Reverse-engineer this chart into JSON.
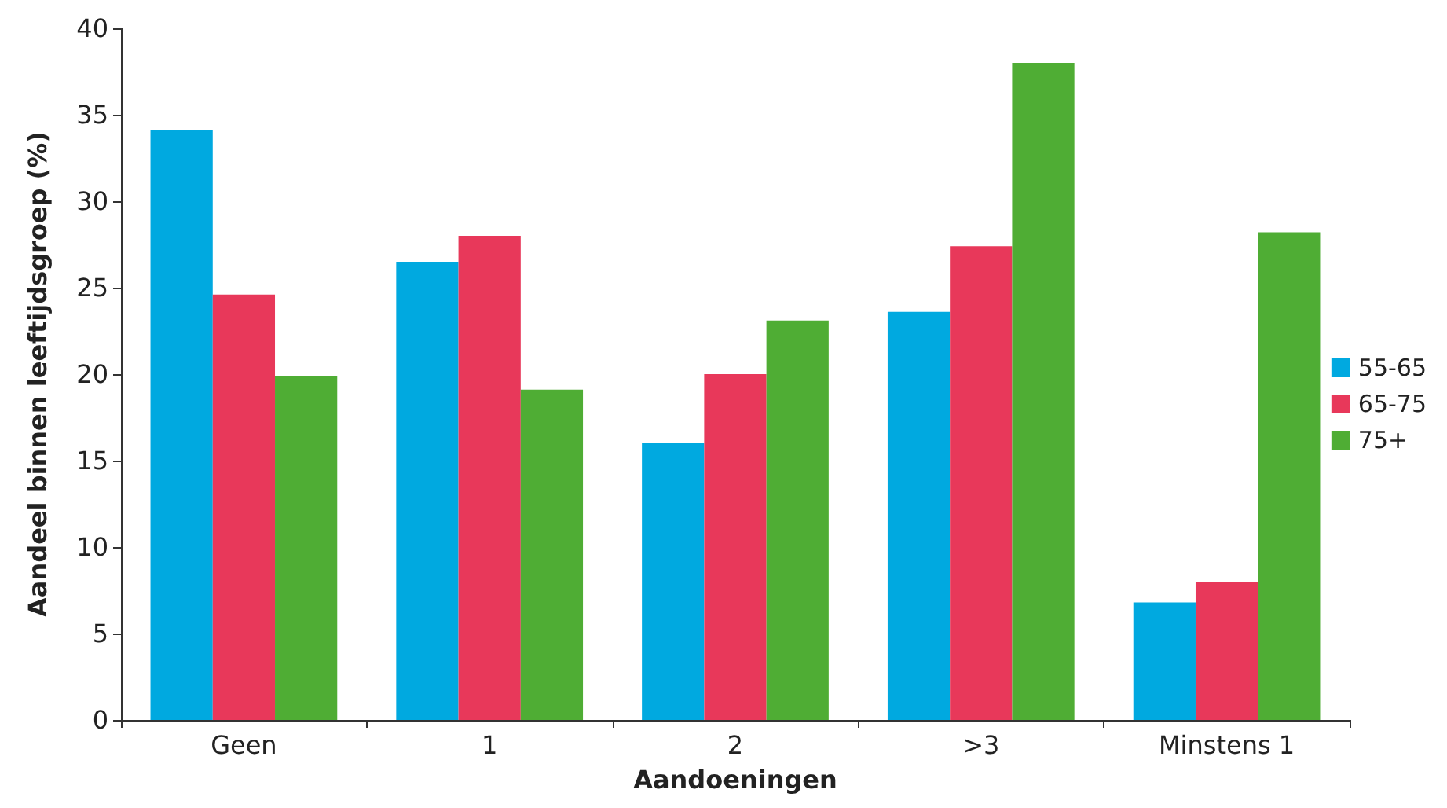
{
  "chart_data": {
    "type": "bar",
    "xlabel": "Aandoeningen",
    "ylabel": "Aandeel binnen leeftijdsgroep (%)",
    "categories": [
      "Geen",
      "1",
      "2",
      ">3",
      "Minstens 1"
    ],
    "series": [
      {
        "name": "55-65",
        "color": "#00a9e0",
        "values": [
          34.1,
          26.5,
          16,
          23.6,
          6.8
        ]
      },
      {
        "name": "65-75",
        "color": "#e8385a",
        "values": [
          24.6,
          28,
          20,
          27.4,
          8
        ]
      },
      {
        "name": "75+",
        "color": "#4fad34",
        "values": [
          19.9,
          19.1,
          23.1,
          38,
          28.2
        ]
      }
    ],
    "ylim": [
      0,
      40
    ],
    "yticks": [
      0,
      5,
      10,
      15,
      20,
      25,
      30,
      35,
      40
    ],
    "grid": false,
    "legend": "right"
  }
}
